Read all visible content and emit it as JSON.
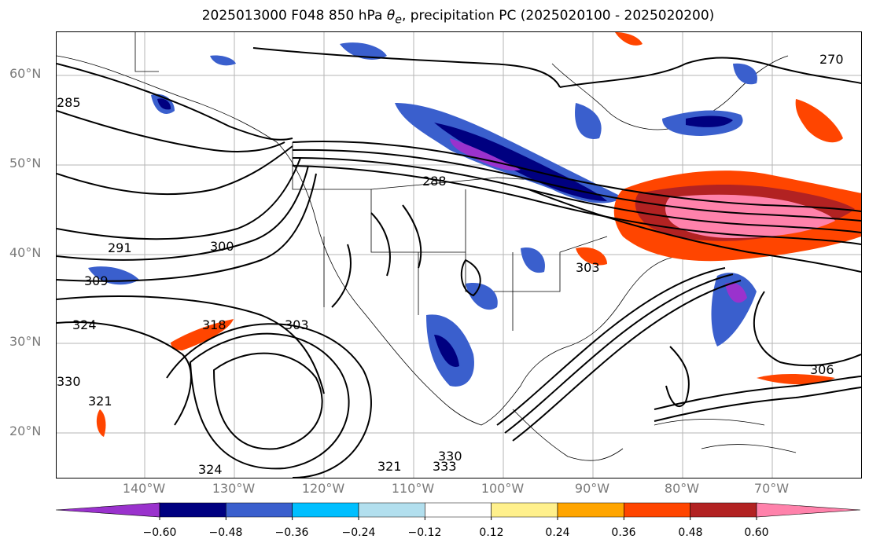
{
  "title": {
    "main": "2025013000 F048 850 hPa",
    "symbol": "θ",
    "sub": "e",
    "rest": ", precipitation PC (2025020100 - 2025020200)"
  },
  "axes": {
    "lat_labels": [
      "60°N",
      "50°N",
      "40°N",
      "30°N",
      "20°N"
    ],
    "lon_labels": [
      "140°W",
      "130°W",
      "120°W",
      "110°W",
      "100°W",
      "90°W",
      "80°W",
      "70°W"
    ]
  },
  "contour_labels": [
    "270",
    "285",
    "288",
    "291",
    "300",
    "303",
    "303",
    "306",
    "309",
    "318",
    "321",
    "324",
    "330",
    "333",
    "330",
    "321",
    "324"
  ],
  "colorbar": {
    "tick_labels": [
      "−0.60",
      "−0.48",
      "−0.36",
      "−0.24",
      "−0.12",
      "0.12",
      "0.24",
      "0.36",
      "0.48",
      "0.60"
    ],
    "colors": [
      "#9a32cd",
      "#000080",
      "#3a5fcd",
      "#00bfff",
      "#b2dfee",
      "#ffffff",
      "#fff08c",
      "#ffa500",
      "#ff4500",
      "#b22222",
      "#ff82ab"
    ]
  }
}
